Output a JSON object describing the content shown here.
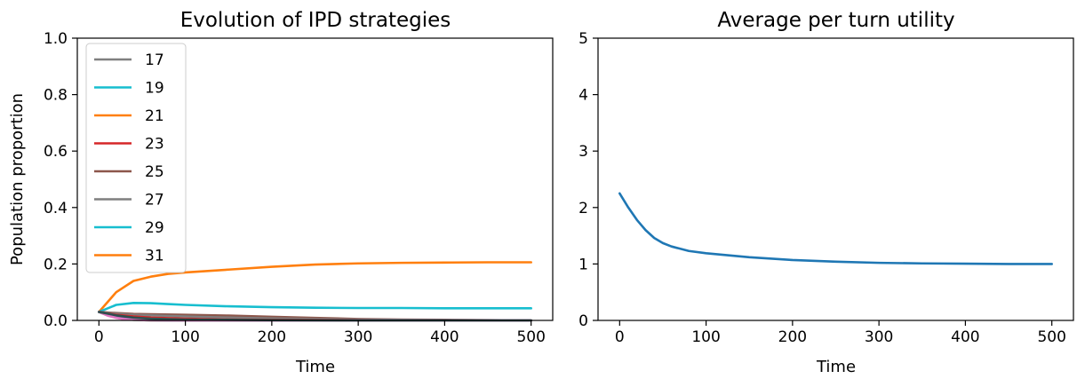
{
  "chart_data": [
    {
      "type": "line",
      "title": "Evolution of IPD strategies",
      "xlabel": "Time",
      "ylabel": "Population proportion",
      "xlim": [
        -25,
        525
      ],
      "ylim": [
        0,
        1.0
      ],
      "xticks": [
        0,
        100,
        200,
        300,
        400,
        500
      ],
      "xtick_labels": [
        "0",
        "100",
        "200",
        "300",
        "400",
        "500"
      ],
      "yticks": [
        0,
        0.2,
        0.4,
        0.6,
        0.8,
        1.0
      ],
      "ytick_labels": [
        "0.0",
        "0.2",
        "0.4",
        "0.6",
        "0.8",
        "1.0"
      ],
      "grid": false,
      "legend_position": "top-left",
      "legend": [
        {
          "label": "17",
          "color": "#7f7f7f"
        },
        {
          "label": "19",
          "color": "#17becf"
        },
        {
          "label": "21",
          "color": "#ff7f0e"
        },
        {
          "label": "23",
          "color": "#d62728"
        },
        {
          "label": "25",
          "color": "#8c564b"
        },
        {
          "label": "27",
          "color": "#7f7f7f"
        },
        {
          "label": "29",
          "color": "#17becf"
        },
        {
          "label": "31",
          "color": "#ff7f0e"
        }
      ],
      "series": [
        {
          "color": "#ff7f0e",
          "x": [
            0,
            20,
            40,
            60,
            80,
            100,
            150,
            200,
            250,
            300,
            350,
            400,
            450,
            500
          ],
          "values": [
            0.03,
            0.1,
            0.14,
            0.155,
            0.165,
            0.17,
            0.18,
            0.19,
            0.198,
            0.202,
            0.204,
            0.205,
            0.206,
            0.206
          ]
        },
        {
          "color": "#17becf",
          "x": [
            0,
            20,
            40,
            60,
            80,
            100,
            150,
            200,
            250,
            300,
            350,
            400,
            450,
            500
          ],
          "values": [
            0.03,
            0.055,
            0.062,
            0.061,
            0.058,
            0.055,
            0.05,
            0.047,
            0.045,
            0.044,
            0.044,
            0.043,
            0.043,
            0.043
          ]
        },
        {
          "color": "#8c564b",
          "x": [
            0,
            20,
            40,
            60,
            100,
            150,
            200,
            250,
            300,
            350,
            400,
            450,
            500
          ],
          "values": [
            0.03,
            0.026,
            0.023,
            0.022,
            0.02,
            0.017,
            0.013,
            0.009,
            0.005,
            0.003,
            0.002,
            0.001,
            0.0
          ]
        },
        {
          "color": "#7f7f7f",
          "x": [
            0,
            20,
            40,
            60,
            100,
            150,
            200,
            300,
            400,
            500
          ],
          "values": [
            0.03,
            0.024,
            0.02,
            0.018,
            0.014,
            0.01,
            0.007,
            0.003,
            0.001,
            0.0
          ]
        },
        {
          "color": "#d62728",
          "x": [
            0,
            20,
            40,
            60,
            100,
            150,
            200,
            300,
            400,
            500
          ],
          "values": [
            0.03,
            0.02,
            0.014,
            0.01,
            0.006,
            0.003,
            0.002,
            0.001,
            0.0,
            0.0
          ]
        },
        {
          "color": "#bcbd22",
          "x": [
            0,
            10,
            20,
            30,
            40,
            60,
            80,
            100,
            150,
            200,
            300,
            500
          ],
          "values": [
            0.03,
            0.022,
            0.015,
            0.01,
            0.006,
            0.003,
            0.001,
            0.0,
            0.0,
            0.0,
            0.0,
            0.0
          ]
        },
        {
          "color": "#1f77b4",
          "x": [
            0,
            10,
            20,
            30,
            40,
            60,
            80,
            100,
            200,
            500
          ],
          "values": [
            0.03,
            0.02,
            0.012,
            0.007,
            0.004,
            0.001,
            0.0,
            0.0,
            0.0,
            0.0
          ]
        },
        {
          "color": "#2ca02c",
          "x": [
            0,
            10,
            20,
            30,
            40,
            60,
            100,
            500
          ],
          "values": [
            0.03,
            0.018,
            0.01,
            0.005,
            0.002,
            0.0,
            0.0,
            0.0
          ]
        },
        {
          "color": "#9467bd",
          "x": [
            0,
            10,
            20,
            30,
            40,
            60,
            100,
            500
          ],
          "values": [
            0.03,
            0.02,
            0.011,
            0.006,
            0.003,
            0.001,
            0.0,
            0.0
          ]
        },
        {
          "color": "#e377c2",
          "x": [
            0,
            10,
            20,
            30,
            40,
            60,
            100,
            500
          ],
          "values": [
            0.03,
            0.017,
            0.009,
            0.004,
            0.002,
            0.0,
            0.0,
            0.0
          ]
        },
        {
          "color": "#2f4f4f",
          "x": [
            0,
            20,
            40,
            60,
            100,
            200,
            300,
            400,
            500
          ],
          "values": [
            0.03,
            0.018,
            0.01,
            0.006,
            0.003,
            0.001,
            0.0,
            0.0,
            0.0
          ]
        }
      ]
    },
    {
      "type": "line",
      "title": "Average per turn utility",
      "xlabel": "Time",
      "ylabel": "",
      "xlim": [
        -25,
        525
      ],
      "ylim": [
        0,
        5
      ],
      "xticks": [
        0,
        100,
        200,
        300,
        400,
        500
      ],
      "xtick_labels": [
        "0",
        "100",
        "200",
        "300",
        "400",
        "500"
      ],
      "yticks": [
        0,
        1,
        2,
        3,
        4,
        5
      ],
      "ytick_labels": [
        "0",
        "1",
        "2",
        "3",
        "4",
        "5"
      ],
      "grid": false,
      "series": [
        {
          "color": "#1f77b4",
          "x": [
            0,
            10,
            20,
            30,
            40,
            50,
            60,
            80,
            100,
            150,
            200,
            250,
            300,
            350,
            400,
            450,
            500
          ],
          "values": [
            2.25,
            2.0,
            1.78,
            1.6,
            1.46,
            1.37,
            1.31,
            1.23,
            1.19,
            1.12,
            1.07,
            1.04,
            1.02,
            1.01,
            1.005,
            1.0,
            1.0
          ]
        }
      ]
    }
  ]
}
